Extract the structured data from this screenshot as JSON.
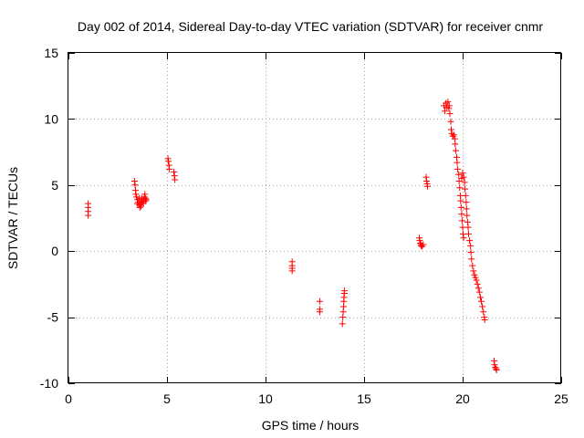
{
  "chart_data": {
    "type": "scatter",
    "title": "Day 002 of 2014, Sidereal Day-to-day VTEC variation (SDTVAR) for receiver cnmr",
    "xlabel": "GPS time / hours",
    "ylabel": "SDTVAR / TECUs",
    "xlim": [
      0,
      25
    ],
    "ylim": [
      -10,
      15
    ],
    "xticks": [
      0,
      5,
      10,
      15,
      20,
      25
    ],
    "yticks": [
      -10,
      -5,
      0,
      5,
      10,
      15
    ],
    "grid": true,
    "marker": "+",
    "series": [
      {
        "name": "SDTVAR",
        "color": "#ff0000",
        "points": [
          [
            1.0,
            3.6
          ],
          [
            1.0,
            3.3
          ],
          [
            1.0,
            3.0
          ],
          [
            1.0,
            2.7
          ],
          [
            3.35,
            5.3
          ],
          [
            3.38,
            5.0
          ],
          [
            3.4,
            4.6
          ],
          [
            3.42,
            4.3
          ],
          [
            3.45,
            4.1
          ],
          [
            3.5,
            3.9
          ],
          [
            3.55,
            3.7
          ],
          [
            3.6,
            3.5
          ],
          [
            3.62,
            3.3
          ],
          [
            3.65,
            3.6
          ],
          [
            3.7,
            3.8
          ],
          [
            3.72,
            4.0
          ],
          [
            3.75,
            3.7
          ],
          [
            3.8,
            3.6
          ],
          [
            3.82,
            3.9
          ],
          [
            3.85,
            4.1
          ],
          [
            3.88,
            4.3
          ],
          [
            3.9,
            4.0
          ],
          [
            3.92,
            3.8
          ],
          [
            3.95,
            3.9
          ],
          [
            3.6,
            4.0
          ],
          [
            3.5,
            3.6
          ],
          [
            3.68,
            3.4
          ],
          [
            5.05,
            7.0
          ],
          [
            5.07,
            6.8
          ],
          [
            5.1,
            6.5
          ],
          [
            5.12,
            6.2
          ],
          [
            5.35,
            6.0
          ],
          [
            5.38,
            5.7
          ],
          [
            5.4,
            5.4
          ],
          [
            11.35,
            -0.8
          ],
          [
            11.35,
            -1.1
          ],
          [
            11.35,
            -1.3
          ],
          [
            11.35,
            -1.5
          ],
          [
            12.75,
            -3.8
          ],
          [
            12.75,
            -4.4
          ],
          [
            12.75,
            -4.6
          ],
          [
            13.9,
            -5.5
          ],
          [
            13.92,
            -5.0
          ],
          [
            13.94,
            -4.6
          ],
          [
            13.96,
            -4.2
          ],
          [
            13.97,
            -3.8
          ],
          [
            13.98,
            -3.5
          ],
          [
            14.0,
            -3.2
          ],
          [
            14.0,
            -3.0
          ],
          [
            17.8,
            1.0
          ],
          [
            17.82,
            0.8
          ],
          [
            17.85,
            0.6
          ],
          [
            17.88,
            0.5
          ],
          [
            17.9,
            0.4
          ],
          [
            17.95,
            0.35
          ],
          [
            18.0,
            0.5
          ],
          [
            18.15,
            5.6
          ],
          [
            18.17,
            5.3
          ],
          [
            18.2,
            5.1
          ],
          [
            18.22,
            4.9
          ],
          [
            19.05,
            11.0
          ],
          [
            19.1,
            10.6
          ],
          [
            19.15,
            11.2
          ],
          [
            19.2,
            10.9
          ],
          [
            19.25,
            11.3
          ],
          [
            19.3,
            10.8
          ],
          [
            19.32,
            11.0
          ],
          [
            19.35,
            10.4
          ],
          [
            19.4,
            9.8
          ],
          [
            19.42,
            9.2
          ],
          [
            19.45,
            8.9
          ],
          [
            19.5,
            8.7
          ],
          [
            19.55,
            8.8
          ],
          [
            19.6,
            8.5
          ],
          [
            19.62,
            8.1
          ],
          [
            19.65,
            7.6
          ],
          [
            19.7,
            7.1
          ],
          [
            19.72,
            6.7
          ],
          [
            19.75,
            6.2
          ],
          [
            19.8,
            5.8
          ],
          [
            19.82,
            5.3
          ],
          [
            19.85,
            4.8
          ],
          [
            19.88,
            4.2
          ],
          [
            19.9,
            3.8
          ],
          [
            19.92,
            3.3
          ],
          [
            19.95,
            2.8
          ],
          [
            19.97,
            2.3
          ],
          [
            20.0,
            1.8
          ],
          [
            20.02,
            1.3
          ],
          [
            20.05,
            1.0
          ],
          [
            19.95,
            5.5
          ],
          [
            20.0,
            5.9
          ],
          [
            20.05,
            5.6
          ],
          [
            20.1,
            5.2
          ],
          [
            20.12,
            4.7
          ],
          [
            20.15,
            4.2
          ],
          [
            20.18,
            3.7
          ],
          [
            20.2,
            3.2
          ],
          [
            20.22,
            2.7
          ],
          [
            20.25,
            2.2
          ],
          [
            20.28,
            1.8
          ],
          [
            20.3,
            1.3
          ],
          [
            20.35,
            0.8
          ],
          [
            20.4,
            0.4
          ],
          [
            20.42,
            -0.1
          ],
          [
            20.45,
            -0.6
          ],
          [
            20.5,
            -1.1
          ],
          [
            20.55,
            -1.5
          ],
          [
            20.6,
            -1.8
          ],
          [
            20.65,
            -2.0
          ],
          [
            20.7,
            -2.2
          ],
          [
            20.75,
            -2.5
          ],
          [
            20.8,
            -2.8
          ],
          [
            20.85,
            -3.1
          ],
          [
            20.9,
            -3.5
          ],
          [
            20.95,
            -3.8
          ],
          [
            21.0,
            -4.2
          ],
          [
            21.05,
            -4.6
          ],
          [
            21.1,
            -5.0
          ],
          [
            21.12,
            -5.2
          ],
          [
            21.6,
            -8.3
          ],
          [
            21.62,
            -8.6
          ],
          [
            21.65,
            -8.8
          ],
          [
            21.7,
            -8.9
          ],
          [
            21.72,
            -9.0
          ]
        ]
      }
    ]
  }
}
